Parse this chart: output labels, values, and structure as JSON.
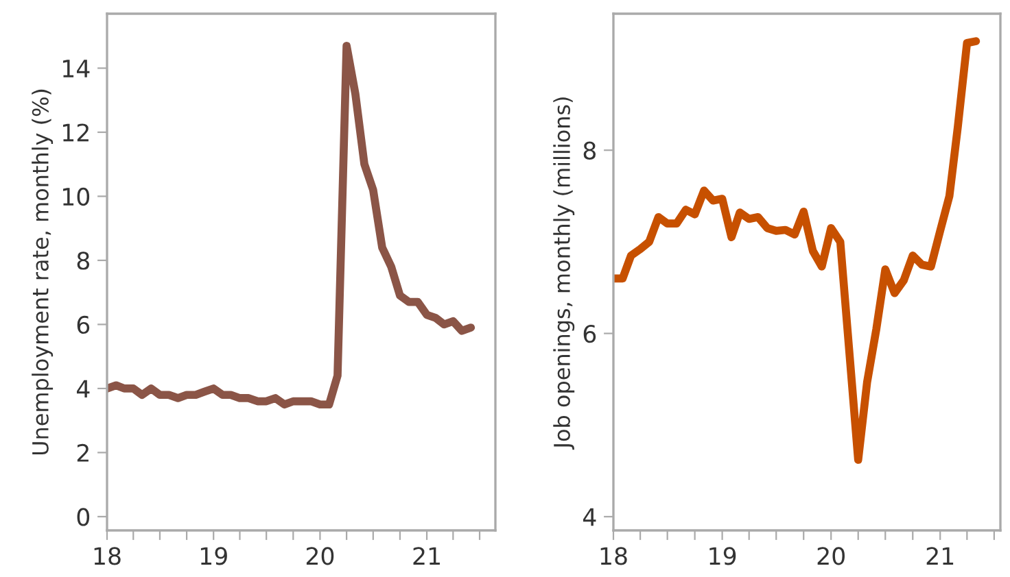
{
  "chart_data": [
    {
      "type": "line",
      "ylabel": "Unemployment rate, monthly (%)",
      "x": [
        "2018-01",
        "2018-02",
        "2018-03",
        "2018-04",
        "2018-05",
        "2018-06",
        "2018-07",
        "2018-08",
        "2018-09",
        "2018-10",
        "2018-11",
        "2018-12",
        "2019-01",
        "2019-02",
        "2019-03",
        "2019-04",
        "2019-05",
        "2019-06",
        "2019-07",
        "2019-08",
        "2019-09",
        "2019-10",
        "2019-11",
        "2019-12",
        "2020-01",
        "2020-02",
        "2020-03",
        "2020-04",
        "2020-05",
        "2020-06",
        "2020-07",
        "2020-08",
        "2020-09",
        "2020-10",
        "2020-11",
        "2020-12",
        "2021-01",
        "2021-02",
        "2021-03",
        "2021-04",
        "2021-05",
        "2021-06"
      ],
      "series": [
        {
          "color": "#8b5547",
          "values": [
            4.0,
            4.1,
            4.0,
            4.0,
            3.8,
            4.0,
            3.8,
            3.8,
            3.7,
            3.8,
            3.8,
            3.9,
            4.0,
            3.8,
            3.8,
            3.7,
            3.7,
            3.6,
            3.6,
            3.7,
            3.5,
            3.6,
            3.6,
            3.6,
            3.5,
            3.5,
            4.4,
            14.7,
            13.2,
            11.0,
            10.2,
            8.4,
            7.8,
            6.9,
            6.7,
            6.7,
            6.3,
            6.2,
            6.0,
            6.1,
            5.8,
            5.9
          ]
        }
      ],
      "xlim": [
        "2018-01-01",
        "2021-08-24"
      ],
      "xticks": [
        {
          "value": "2018-01",
          "label": "18"
        },
        {
          "value": "2018-04",
          "label": null
        },
        {
          "value": "2018-07",
          "label": null
        },
        {
          "value": "2018-10",
          "label": null
        },
        {
          "value": "2019-01",
          "label": "19"
        },
        {
          "value": "2019-04",
          "label": null
        },
        {
          "value": "2019-07",
          "label": null
        },
        {
          "value": "2019-10",
          "label": null
        },
        {
          "value": "2020-01",
          "label": "20"
        },
        {
          "value": "2020-04",
          "label": null
        },
        {
          "value": "2020-07",
          "label": null
        },
        {
          "value": "2020-10",
          "label": null
        },
        {
          "value": "2021-01",
          "label": "21"
        },
        {
          "value": "2021-04",
          "label": null
        },
        {
          "value": "2021-07",
          "label": null
        }
      ],
      "ylim": [
        -0.43,
        15.7
      ],
      "yticks": [
        0,
        2,
        4,
        6,
        8,
        10,
        12,
        14
      ],
      "grid": false,
      "legend": false,
      "marker": "none",
      "line_style": "solid"
    },
    {
      "type": "line",
      "ylabel": "Job openings, monthly (millions)",
      "x": [
        "2018-01",
        "2018-02",
        "2018-03",
        "2018-04",
        "2018-05",
        "2018-06",
        "2018-07",
        "2018-08",
        "2018-09",
        "2018-10",
        "2018-11",
        "2018-12",
        "2019-01",
        "2019-02",
        "2019-03",
        "2019-04",
        "2019-05",
        "2019-06",
        "2019-07",
        "2019-08",
        "2019-09",
        "2019-10",
        "2019-11",
        "2019-12",
        "2020-01",
        "2020-02",
        "2020-03",
        "2020-04",
        "2020-05",
        "2020-06",
        "2020-07",
        "2020-08",
        "2020-09",
        "2020-10",
        "2020-11",
        "2020-12",
        "2021-01",
        "2021-02",
        "2021-03",
        "2021-04",
        "2021-05"
      ],
      "series": [
        {
          "color": "#c75000",
          "values": [
            6.6,
            6.6,
            6.85,
            6.92,
            7.0,
            7.27,
            7.2,
            7.2,
            7.35,
            7.3,
            7.56,
            7.45,
            7.47,
            7.05,
            7.32,
            7.25,
            7.27,
            7.15,
            7.12,
            7.13,
            7.08,
            7.33,
            6.9,
            6.73,
            7.15,
            7.0,
            5.85,
            4.62,
            5.47,
            6.05,
            6.7,
            6.44,
            6.58,
            6.85,
            6.75,
            6.73,
            7.12,
            7.5,
            8.25,
            9.17,
            9.19
          ]
        }
      ],
      "xlim": [
        "2018-01-01",
        "2021-07-22"
      ],
      "xticks": [
        {
          "value": "2018-01",
          "label": "18"
        },
        {
          "value": "2018-04",
          "label": null
        },
        {
          "value": "2018-07",
          "label": null
        },
        {
          "value": "2018-10",
          "label": null
        },
        {
          "value": "2019-01",
          "label": "19"
        },
        {
          "value": "2019-04",
          "label": null
        },
        {
          "value": "2019-07",
          "label": null
        },
        {
          "value": "2019-10",
          "label": null
        },
        {
          "value": "2020-01",
          "label": "20"
        },
        {
          "value": "2020-04",
          "label": null
        },
        {
          "value": "2020-07",
          "label": null
        },
        {
          "value": "2020-10",
          "label": null
        },
        {
          "value": "2021-01",
          "label": "21"
        },
        {
          "value": "2021-04",
          "label": null
        },
        {
          "value": "2021-07",
          "label": null
        }
      ],
      "ylim": [
        3.85,
        9.49
      ],
      "yticks": [
        4,
        6,
        8
      ],
      "grid": false,
      "legend": false,
      "marker": "none",
      "line_style": "solid"
    }
  ]
}
